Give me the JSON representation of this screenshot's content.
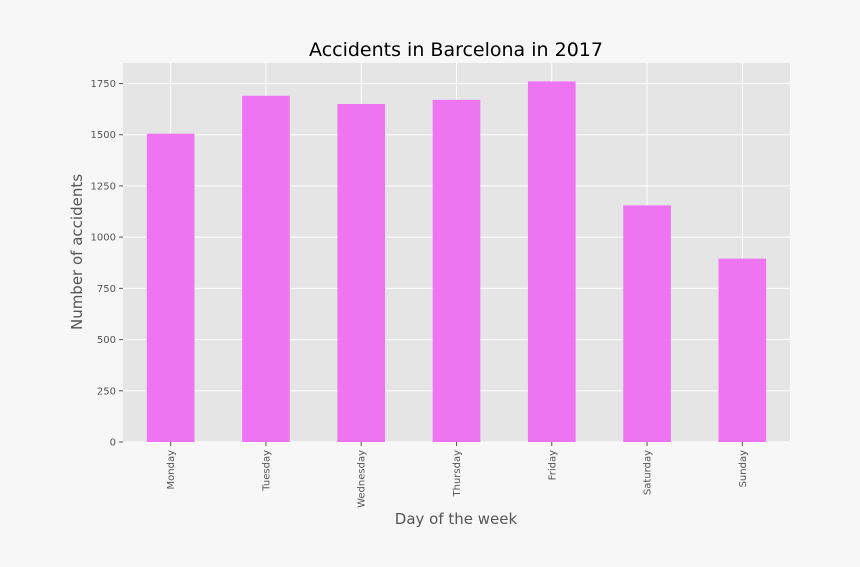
{
  "chart_data": {
    "type": "bar",
    "title": "Accidents in Barcelona in 2017",
    "xlabel": "Day of the week",
    "ylabel": "Number of accidents",
    "categories": [
      "Monday",
      "Tuesday",
      "Wednesday",
      "Thursday",
      "Friday",
      "Saturday",
      "Sunday"
    ],
    "values": [
      1505,
      1690,
      1650,
      1670,
      1760,
      1155,
      895
    ],
    "ylim": [
      0,
      1850
    ],
    "yticks": [
      0,
      250,
      500,
      750,
      1000,
      1250,
      1500,
      1750
    ],
    "grid": true,
    "legend": "none",
    "bar_color": "#ee6ef1",
    "plot_bg": "#e5e5e5",
    "grid_color": "#ffffff"
  }
}
